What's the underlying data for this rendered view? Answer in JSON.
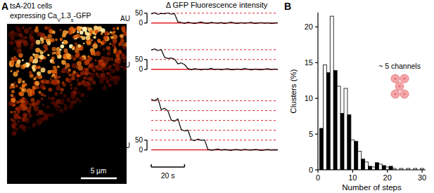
{
  "panel_a": {
    "label": "A",
    "caption": [
      [
        {
          "text": "tsA-201 cells"
        }
      ],
      [
        {
          "text": "expressing Ca"
        },
        {
          "text": "V",
          "sub": true
        },
        {
          "text": "1.3"
        },
        {
          "text": "s",
          "sub": true
        },
        {
          "text": "-GFP"
        }
      ]
    ],
    "image_scale_bar": "5 µm"
  },
  "panel_b": {
    "label": "B"
  },
  "chart_data": [
    {
      "type": "line",
      "title": "Δ GFP Fluorescence intensity",
      "ylabel": "AU",
      "x": [
        0,
        2,
        4,
        6,
        8,
        10,
        12,
        14,
        16,
        18,
        20,
        22,
        24,
        26,
        28,
        30,
        32,
        34,
        36,
        38,
        40,
        42,
        44,
        46,
        48,
        50,
        52,
        54,
        56,
        58,
        60,
        62,
        64,
        66,
        68,
        70,
        72,
        74,
        76
      ],
      "series": [
        {
          "color": "#000000",
          "values": [
            46,
            52,
            44,
            49,
            47,
            51,
            45,
            48,
            6,
            3,
            -2,
            4,
            1,
            -3,
            2,
            5,
            0,
            -2,
            3,
            1,
            -1,
            2,
            -3,
            1,
            4,
            0,
            -2,
            2,
            -1,
            1,
            3,
            -2,
            0,
            2,
            -1,
            1,
            -2,
            0,
            1
          ]
        }
      ],
      "xlim": [
        0,
        76
      ],
      "ylim": [
        -15,
        60
      ],
      "yticks": [
        0,
        50
      ],
      "tick_labels": "y",
      "step_levels": [
        50
      ],
      "baseline": 0
    },
    {
      "type": "line",
      "ylabel": "AU",
      "x": [
        0,
        2,
        4,
        6,
        8,
        10,
        12,
        14,
        16,
        18,
        20,
        22,
        24,
        26,
        28,
        30,
        32,
        34,
        36,
        38,
        40,
        42,
        44,
        46,
        48,
        50,
        52,
        54,
        56,
        58,
        60,
        62,
        64,
        66,
        68,
        70,
        72,
        74,
        76
      ],
      "series": [
        {
          "color": "#000000",
          "values": [
            98,
            104,
            95,
            101,
            62,
            55,
            58,
            52,
            28,
            33,
            24,
            4,
            -2,
            3,
            1,
            -3,
            2,
            0,
            5,
            -1,
            2,
            -2,
            1,
            3,
            -2,
            0,
            2,
            -1,
            4,
            1,
            -3,
            2,
            0,
            -2,
            1,
            3,
            -1,
            2,
            0
          ]
        }
      ],
      "xlim": [
        0,
        76
      ],
      "ylim": [
        -15,
        110
      ],
      "yticks": [
        0,
        50
      ],
      "tick_labels": "y",
      "step_levels": [
        50,
        100
      ],
      "baseline": 0
    },
    {
      "type": "line",
      "ylabel": "AU",
      "x": [
        0,
        2,
        4,
        6,
        8,
        10,
        12,
        14,
        16,
        18,
        20,
        22,
        24,
        26,
        28,
        30,
        32,
        34,
        36,
        38,
        40,
        42,
        44,
        46,
        48,
        50,
        52,
        54,
        56,
        58,
        60,
        62,
        64,
        66,
        68,
        70,
        72,
        74,
        76
      ],
      "series": [
        {
          "color": "#000000",
          "values": [
            258,
            250,
            262,
            205,
            212,
            198,
            152,
            146,
            158,
            104,
            96,
            101,
            52,
            47,
            55,
            49,
            51,
            3,
            -2,
            1,
            4,
            -1,
            2,
            0,
            -3,
            2,
            1,
            -2,
            3,
            0,
            -1,
            2,
            1,
            -3,
            0,
            2,
            -1,
            1,
            0
          ]
        }
      ],
      "xlim": [
        0,
        76
      ],
      "ylim": [
        -15,
        270
      ],
      "yticks": [
        0,
        50
      ],
      "tick_labels": "y",
      "step_levels": [
        50,
        100,
        150,
        200,
        250
      ],
      "baseline": 0,
      "scale_bar": {
        "value": 20,
        "label": "20 s"
      }
    },
    {
      "type": "histogram",
      "xlabel": "Number of steps",
      "ylabel": "Clusters (%)",
      "bins": [
        0.5,
        1.5,
        2.5,
        3.5,
        4.5,
        5.5,
        6.5,
        7.5,
        8.5,
        9.5,
        10.5,
        11.5,
        12.5,
        13.5,
        14.5,
        15.5,
        16.5,
        17.5,
        18.5,
        19.5,
        20.5,
        21.5,
        22.5,
        23.5,
        24.5,
        25.5,
        26.5,
        27.5,
        28.5,
        29.5,
        30.5
      ],
      "values": [
        5.8,
        14.7,
        13.6,
        21.5,
        13.9,
        11.7,
        7.9,
        11.4,
        7.7,
        4.2,
        4.0,
        2.6,
        1.5,
        1.1,
        0.5,
        0.4,
        1.0,
        0.8,
        0.6,
        0.4,
        0.5,
        0.2,
        0,
        0.2,
        0,
        0.2,
        0,
        0.2,
        0,
        0.2
      ],
      "colors": [
        "#000000",
        "#ffffff",
        "#000000",
        "#ffffff",
        "#000000",
        "#ffffff",
        "#000000",
        "#ffffff",
        "#000000",
        "#ffffff",
        "#000000",
        "#ffffff",
        "#000000",
        "#ffffff",
        "#000000",
        "#ffffff",
        "#000000",
        "#ffffff",
        "#000000",
        "#ffffff",
        "#000000",
        "#ffffff",
        "#000000",
        "#ffffff",
        "#000000",
        "#ffffff",
        "#000000",
        "#ffffff",
        "#000000",
        "#ffffff"
      ],
      "xlim": [
        0,
        31
      ],
      "ylim": [
        0,
        22
      ],
      "xticks": [
        0,
        10,
        20,
        30
      ],
      "yticks": [
        0,
        5,
        10,
        15,
        20
      ],
      "annotations": [
        "~ 5 channels"
      ]
    }
  ]
}
